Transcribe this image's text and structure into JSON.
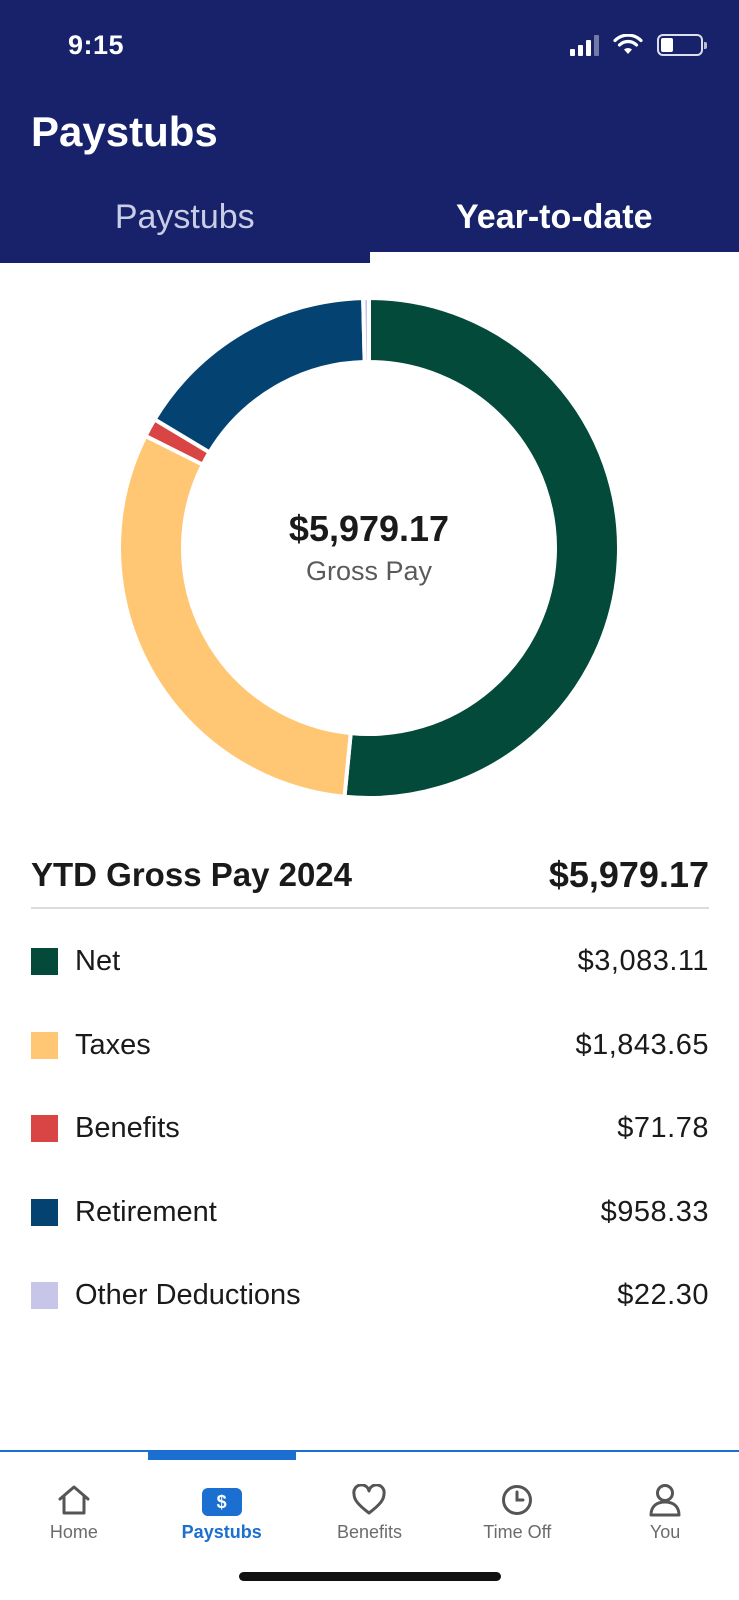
{
  "status_bar": {
    "time": "9:15"
  },
  "header": {
    "title": "Paystubs"
  },
  "tabs": [
    {
      "label": "Paystubs",
      "active": false
    },
    {
      "label": "Year-to-date",
      "active": true
    }
  ],
  "chart_data": {
    "type": "pie",
    "center_value": "$5,979.17",
    "center_label": "Gross Pay",
    "slices": [
      {
        "label": "Net",
        "value": 3083.11,
        "color": "#044a3a"
      },
      {
        "label": "Taxes",
        "value": 1843.65,
        "color": "#ffc774"
      },
      {
        "label": "Benefits",
        "value": 71.78,
        "color": "#d94444"
      },
      {
        "label": "Retirement",
        "value": 958.33,
        "color": "#044272"
      },
      {
        "label": "Other Deductions",
        "value": 22.3,
        "color": "#c8c6e8"
      }
    ]
  },
  "summary": {
    "title": "YTD Gross Pay 2024",
    "amount": "$5,979.17"
  },
  "legend": [
    {
      "label": "Net",
      "value": "$3,083.11",
      "color": "#044a3a"
    },
    {
      "label": "Taxes",
      "value": "$1,843.65",
      "color": "#ffc774"
    },
    {
      "label": "Benefits",
      "value": "$71.78",
      "color": "#d94444"
    },
    {
      "label": "Retirement",
      "value": "$958.33",
      "color": "#044272"
    },
    {
      "label": "Other Deductions",
      "value": "$22.30",
      "color": "#c8c6e8"
    }
  ],
  "bottom_nav": [
    {
      "label": "Home",
      "icon": "home-icon",
      "active": false
    },
    {
      "label": "Paystubs",
      "icon": "dollar-icon",
      "badge": "$",
      "active": true
    },
    {
      "label": "Benefits",
      "icon": "heart-icon",
      "active": false
    },
    {
      "label": "Time Off",
      "icon": "clock-icon",
      "active": false
    },
    {
      "label": "You",
      "icon": "person-icon",
      "active": false
    }
  ],
  "colors": {
    "header_bg": "#17226b",
    "accent": "#1a6fd0"
  }
}
